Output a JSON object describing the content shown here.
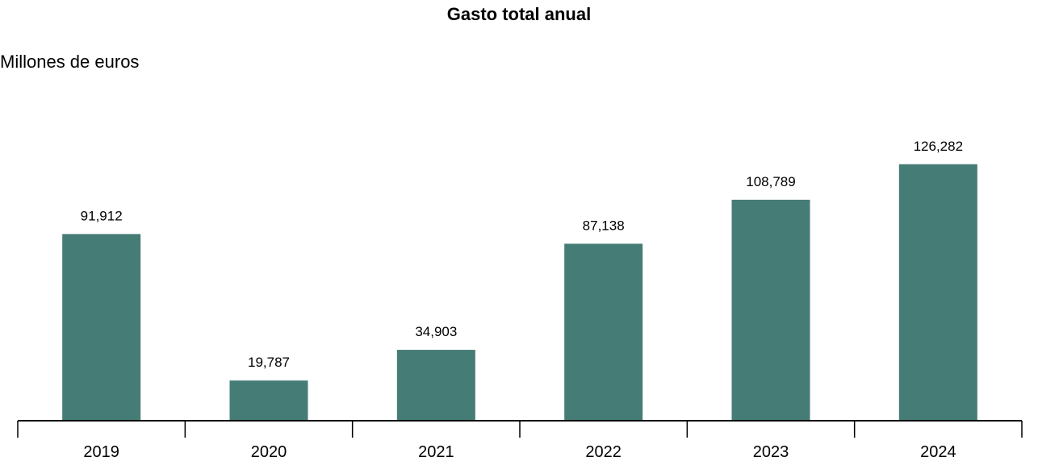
{
  "chart_data": {
    "type": "bar",
    "title": "Gasto total anual",
    "ylabel": "Millones de euros",
    "xlabel": "",
    "categories": [
      "2019",
      "2020",
      "2021",
      "2022",
      "2023",
      "2024"
    ],
    "values": [
      91912,
      19787,
      34903,
      87138,
      108789,
      126282
    ],
    "value_labels": [
      "91,912",
      "19,787",
      "34,903",
      "87,138",
      "108,789",
      "126,282"
    ],
    "ylim": [
      0,
      150000
    ],
    "grid": false,
    "legend": "none",
    "colors": {
      "bar": "#467c76",
      "axis": "#000000"
    }
  }
}
